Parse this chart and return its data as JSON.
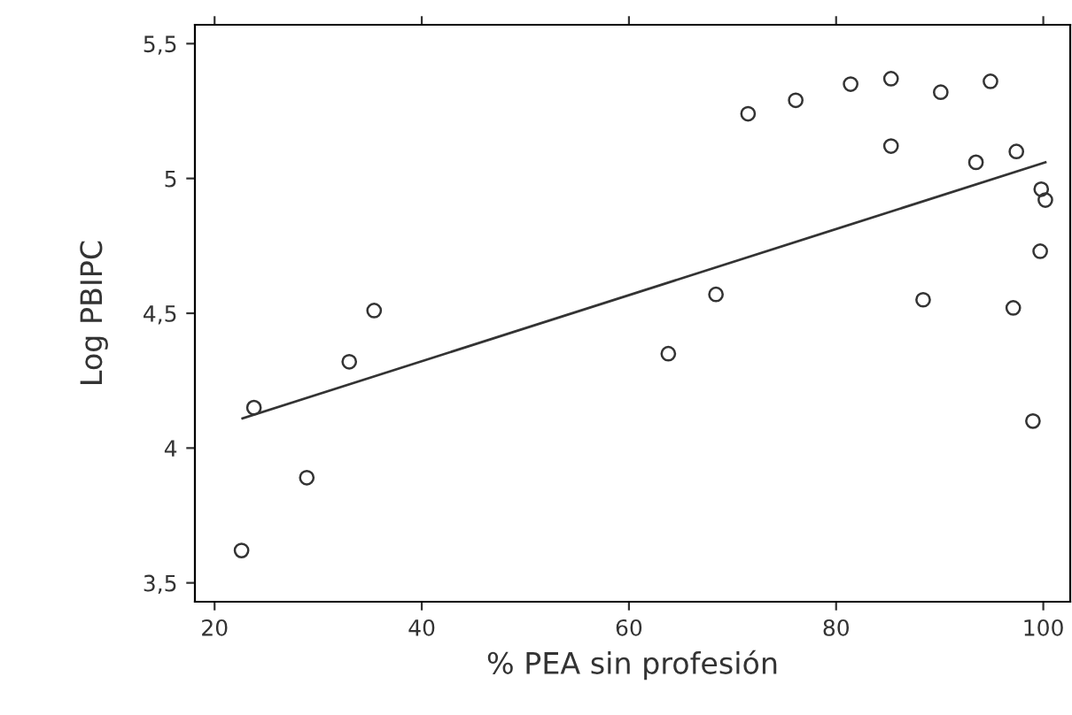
{
  "chart_data": {
    "type": "scatter",
    "xlabel": "% PEA sin profesión",
    "ylabel": "Log PBIPC",
    "grid": false,
    "legend": false,
    "xlim": [
      18.1,
      102.6
    ],
    "ylim": [
      3.43,
      5.57
    ],
    "xticks": [
      20,
      40,
      60,
      80,
      100
    ],
    "yticks": [
      {
        "value": 3.5,
        "label": "3,5"
      },
      4,
      {
        "value": 4.5,
        "label": "4,5"
      },
      5,
      {
        "value": 5.5,
        "label": "5,5"
      }
    ],
    "series": [
      {
        "marker": "circle",
        "color": "#333333",
        "x": [
          22.6,
          23.8,
          28.9,
          33,
          35.4,
          63.8,
          68.4,
          71.5,
          76.1,
          81.4,
          85.3,
          85.3,
          90.1,
          94.9,
          88.4,
          93.5,
          97.4,
          99.8,
          100.2,
          99.7,
          97.1,
          99.0
        ],
        "values": [
          3.62,
          4.15,
          3.89,
          4.32,
          4.51,
          4.35,
          4.57,
          5.24,
          5.29,
          5.35,
          5.37,
          5.12,
          5.32,
          5.36,
          4.55,
          5.06,
          5.1,
          4.96,
          4.92,
          4.73,
          4.52,
          4.1
        ]
      },
      {
        "type": "line",
        "marker": "none",
        "color": "#333333",
        "x": [
          22.7,
          100.2
        ],
        "values": [
          4.11,
          5.06
        ]
      }
    ]
  }
}
